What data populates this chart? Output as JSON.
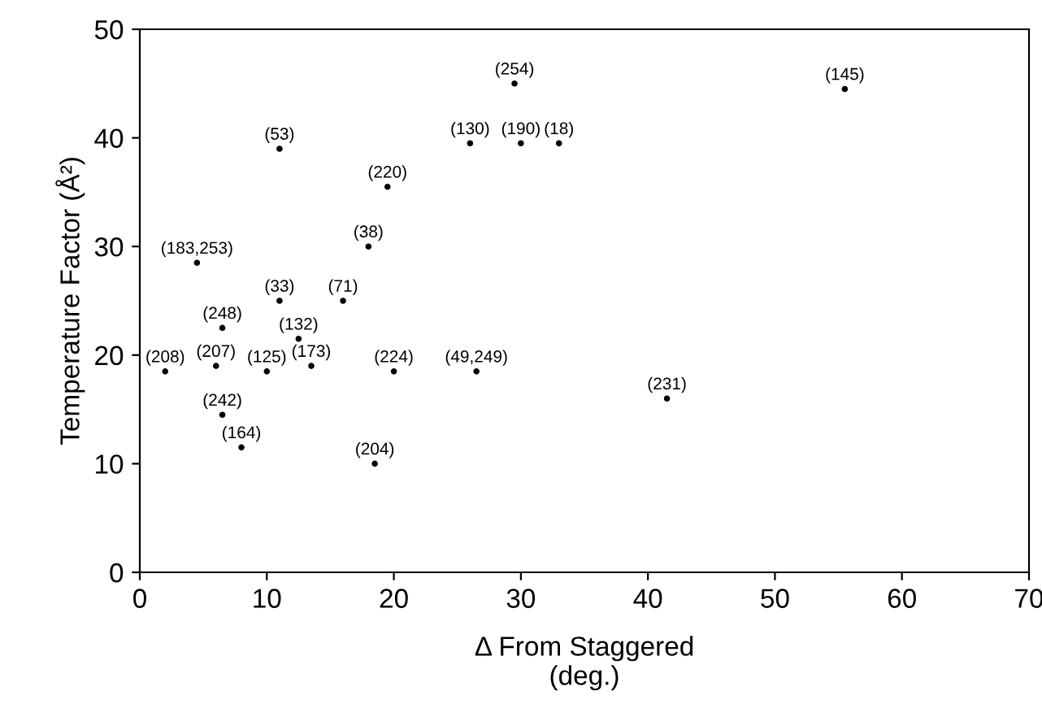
{
  "chart_data": {
    "type": "scatter",
    "xlabel": "Δ From Staggered\n(deg.)",
    "ylabel": "Temperature Factor (Å²)",
    "xlim": [
      0,
      70
    ],
    "ylim": [
      0,
      50
    ],
    "xticks": [
      0,
      10,
      20,
      30,
      40,
      50,
      60,
      70
    ],
    "yticks": [
      0,
      10,
      20,
      30,
      40,
      50
    ],
    "grid": false,
    "marker": "circle",
    "series": [
      {
        "color": "#000000",
        "x": [
          29.5,
          55.5,
          11,
          26,
          30,
          33,
          19.5,
          18,
          4.5,
          11,
          16,
          6.5,
          12.5,
          2,
          6,
          10,
          13.5,
          20,
          26.5,
          41.5,
          6.5,
          8,
          18.5
        ],
        "values": [
          45,
          44.5,
          39,
          39.5,
          39.5,
          39.5,
          35.5,
          30,
          28.5,
          25,
          25,
          22.5,
          21.5,
          18.5,
          19,
          18.5,
          19,
          18.5,
          18.5,
          16,
          14.5,
          11.5,
          10
        ]
      }
    ],
    "annotations": [
      {
        "text": "(254)",
        "x": 29.5,
        "y": 45
      },
      {
        "text": "(145)",
        "x": 55.5,
        "y": 44.5
      },
      {
        "text": "(53)",
        "x": 11,
        "y": 39
      },
      {
        "text": "(130)",
        "x": 26,
        "y": 39.5
      },
      {
        "text": "(190)",
        "x": 30,
        "y": 39.5
      },
      {
        "text": "(18)",
        "x": 33,
        "y": 39.5
      },
      {
        "text": "(220)",
        "x": 19.5,
        "y": 35.5
      },
      {
        "text": "(38)",
        "x": 18,
        "y": 30
      },
      {
        "text": "(183,253)",
        "x": 4.5,
        "y": 28.5
      },
      {
        "text": "(33)",
        "x": 11,
        "y": 25
      },
      {
        "text": "(71)",
        "x": 16,
        "y": 25
      },
      {
        "text": "(248)",
        "x": 6.5,
        "y": 22.5
      },
      {
        "text": "(132)",
        "x": 12.5,
        "y": 21.5
      },
      {
        "text": "(208)",
        "x": 2,
        "y": 18.5
      },
      {
        "text": "(207)",
        "x": 6,
        "y": 19
      },
      {
        "text": "(125)",
        "x": 10,
        "y": 18.5
      },
      {
        "text": "(173)",
        "x": 13.5,
        "y": 19
      },
      {
        "text": "(224)",
        "x": 20,
        "y": 18.5
      },
      {
        "text": "(49,249)",
        "x": 26.5,
        "y": 18.5
      },
      {
        "text": "(231)",
        "x": 41.5,
        "y": 16
      },
      {
        "text": "(242)",
        "x": 6.5,
        "y": 14.5
      },
      {
        "text": "(164)",
        "x": 8,
        "y": 11.5
      },
      {
        "text": "(204)",
        "x": 18.5,
        "y": 10
      }
    ]
  }
}
